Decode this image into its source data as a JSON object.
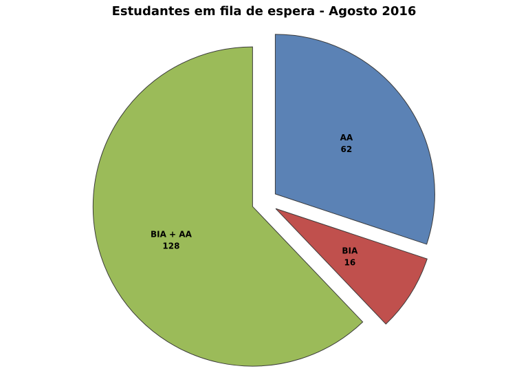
{
  "chart_data": {
    "type": "pie",
    "title": "Estudantes em fila de espera -  Agosto 2016",
    "categories": [
      "AA",
      "BIA",
      "BIA + AA"
    ],
    "values": [
      62,
      16,
      128
    ],
    "colors": [
      "#5B82B5",
      "#C0504D",
      "#9BBB59"
    ],
    "exploded": true,
    "start": "12 o'clock",
    "direction": "clockwise",
    "legend": "none",
    "data_labels": "category and value inside slices"
  }
}
